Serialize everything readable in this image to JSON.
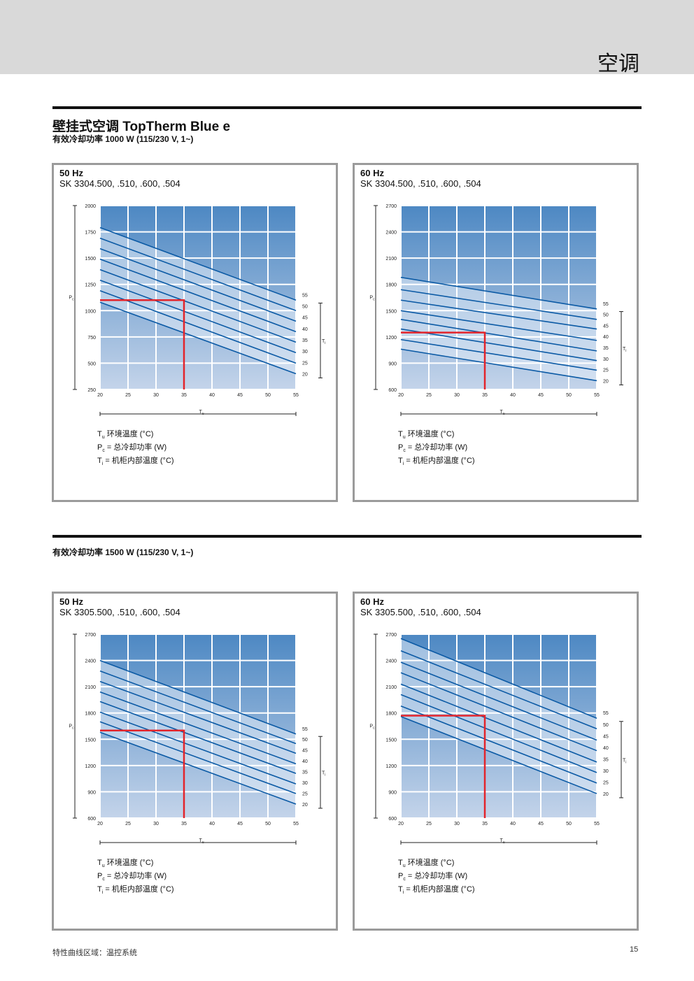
{
  "header": {
    "section_title": "空调"
  },
  "heading": {
    "title": "壁挂式空调 TopTherm Blue e",
    "subtitle_1000": "有效冷却功率 1000 W (115/230 V, 1~)",
    "subtitle_1500": "有效冷却功率 1500 W (115/230 V, 1~)"
  },
  "legend": {
    "tu_sym": "T",
    "tu_sub": "u",
    "tu_text": " 环境温度 (°C)",
    "pc_sym": "P",
    "pc_sub": "c",
    "pc_text": " = 总冷却功率 (W)",
    "ti_sym": "T",
    "ti_sub": "i",
    "ti_text": "  = 机柜内部温度 (°C)"
  },
  "footer": {
    "left": "特性曲线区域：温控系统",
    "page": "15"
  },
  "colors": {
    "line": "#0b5aa5",
    "marker": "#e3242b",
    "grid": "#ffffff",
    "grad_top": "#4d88c3",
    "grad_bottom": "#c4d4ea",
    "border": "#9b9b9b"
  },
  "chart_data": [
    {
      "type": "line",
      "frequency": "50 Hz",
      "model": "SK 3304.500, .510, .600, .504",
      "xlabel_sym": "T",
      "xlabel_sub": "u",
      "ylabel_sym": "P",
      "ylabel_sub": "c",
      "ti_sym": "T",
      "ti_sub": "i",
      "xlim": [
        20,
        55
      ],
      "ylim": [
        250,
        2000
      ],
      "x_ticks": [
        20,
        25,
        30,
        35,
        40,
        45,
        50,
        55
      ],
      "y_ticks": [
        250,
        500,
        750,
        1000,
        1250,
        1500,
        1750,
        2000
      ],
      "series": [
        {
          "name": "55",
          "x": [
            20,
            55
          ],
          "y": [
            1790,
            1100
          ]
        },
        {
          "name": "50",
          "x": [
            20,
            55
          ],
          "y": [
            1690,
            1000
          ]
        },
        {
          "name": "45",
          "x": [
            20,
            55
          ],
          "y": [
            1590,
            900
          ]
        },
        {
          "name": "40",
          "x": [
            20,
            55
          ],
          "y": [
            1490,
            800
          ]
        },
        {
          "name": "35",
          "x": [
            20,
            55
          ],
          "y": [
            1390,
            700
          ]
        },
        {
          "name": "30",
          "x": [
            20,
            55
          ],
          "y": [
            1290,
            600
          ]
        },
        {
          "name": "25",
          "x": [
            20,
            55
          ],
          "y": [
            1190,
            500
          ]
        },
        {
          "name": "20",
          "x": [
            20,
            55
          ],
          "y": [
            1080,
            400
          ]
        }
      ],
      "marker": {
        "x": 35,
        "y": 1100
      }
    },
    {
      "type": "line",
      "frequency": "60 Hz",
      "model": "SK 3304.500, .510, .600, .504",
      "xlabel_sym": "T",
      "xlabel_sub": "u",
      "ylabel_sym": "P",
      "ylabel_sub": "c",
      "ti_sym": "T",
      "ti_sub": "i",
      "xlim": [
        20,
        55
      ],
      "ylim": [
        600,
        2700
      ],
      "x_ticks": [
        20,
        25,
        30,
        35,
        40,
        45,
        50,
        55
      ],
      "y_ticks": [
        600,
        900,
        1200,
        1500,
        1800,
        2100,
        2400,
        2700
      ],
      "series": [
        {
          "name": "55",
          "x": [
            20,
            55
          ],
          "y": [
            1880,
            1520
          ]
        },
        {
          "name": "50",
          "x": [
            20,
            55
          ],
          "y": [
            1740,
            1400
          ]
        },
        {
          "name": "45",
          "x": [
            20,
            55
          ],
          "y": [
            1620,
            1290
          ]
        },
        {
          "name": "40",
          "x": [
            20,
            55
          ],
          "y": [
            1500,
            1160
          ]
        },
        {
          "name": "35",
          "x": [
            20,
            55
          ],
          "y": [
            1400,
            1040
          ]
        },
        {
          "name": "30",
          "x": [
            20,
            55
          ],
          "y": [
            1290,
            930
          ]
        },
        {
          "name": "25",
          "x": [
            20,
            55
          ],
          "y": [
            1170,
            820
          ]
        },
        {
          "name": "20",
          "x": [
            20,
            55
          ],
          "y": [
            1060,
            700
          ]
        }
      ],
      "marker": {
        "x": 35,
        "y": 1250
      }
    },
    {
      "type": "line",
      "frequency": "50 Hz",
      "model": "SK 3305.500, .510, .600, .504",
      "xlabel_sym": "T",
      "xlabel_sub": "u",
      "ylabel_sym": "P",
      "ylabel_sub": "c",
      "ti_sym": "T",
      "ti_sub": "i",
      "xlim": [
        20,
        55
      ],
      "ylim": [
        600,
        2700
      ],
      "x_ticks": [
        20,
        25,
        30,
        35,
        40,
        45,
        50,
        55
      ],
      "y_ticks": [
        600,
        900,
        1200,
        1500,
        1800,
        2100,
        2400,
        2700
      ],
      "series": [
        {
          "name": "55",
          "x": [
            20,
            55
          ],
          "y": [
            2400,
            1560
          ]
        },
        {
          "name": "50",
          "x": [
            20,
            55
          ],
          "y": [
            2280,
            1450
          ]
        },
        {
          "name": "45",
          "x": [
            20,
            55
          ],
          "y": [
            2160,
            1340
          ]
        },
        {
          "name": "40",
          "x": [
            20,
            55
          ],
          "y": [
            2040,
            1220
          ]
        },
        {
          "name": "35",
          "x": [
            20,
            55
          ],
          "y": [
            1930,
            1110
          ]
        },
        {
          "name": "30",
          "x": [
            20,
            55
          ],
          "y": [
            1810,
            990
          ]
        },
        {
          "name": "25",
          "x": [
            20,
            55
          ],
          "y": [
            1700,
            880
          ]
        },
        {
          "name": "20",
          "x": [
            20,
            55
          ],
          "y": [
            1580,
            760
          ]
        }
      ],
      "marker": {
        "x": 35,
        "y": 1600
      }
    },
    {
      "type": "line",
      "frequency": "60 Hz",
      "model": "SK 3305.500, .510, .600, .504",
      "xlabel_sym": "T",
      "xlabel_sub": "u",
      "ylabel_sym": "P",
      "ylabel_sub": "c",
      "ti_sym": "T",
      "ti_sub": "i",
      "xlim": [
        20,
        55
      ],
      "ylim": [
        600,
        2700
      ],
      "x_ticks": [
        20,
        25,
        30,
        35,
        40,
        45,
        50,
        55
      ],
      "y_ticks": [
        600,
        900,
        1200,
        1500,
        1800,
        2100,
        2400,
        2700
      ],
      "series": [
        {
          "name": "55",
          "x": [
            20,
            55
          ],
          "y": [
            2650,
            1740
          ]
        },
        {
          "name": "50",
          "x": [
            20,
            55
          ],
          "y": [
            2510,
            1620
          ]
        },
        {
          "name": "45",
          "x": [
            20,
            55
          ],
          "y": [
            2380,
            1490
          ]
        },
        {
          "name": "40",
          "x": [
            20,
            55
          ],
          "y": [
            2260,
            1370
          ]
        },
        {
          "name": "35",
          "x": [
            20,
            55
          ],
          "y": [
            2130,
            1240
          ]
        },
        {
          "name": "30",
          "x": [
            20,
            55
          ],
          "y": [
            2010,
            1120
          ]
        },
        {
          "name": "25",
          "x": [
            20,
            55
          ],
          "y": [
            1880,
            1000
          ]
        },
        {
          "name": "20",
          "x": [
            20,
            55
          ],
          "y": [
            1760,
            880
          ]
        }
      ],
      "marker": {
        "x": 35,
        "y": 1770
      }
    }
  ]
}
